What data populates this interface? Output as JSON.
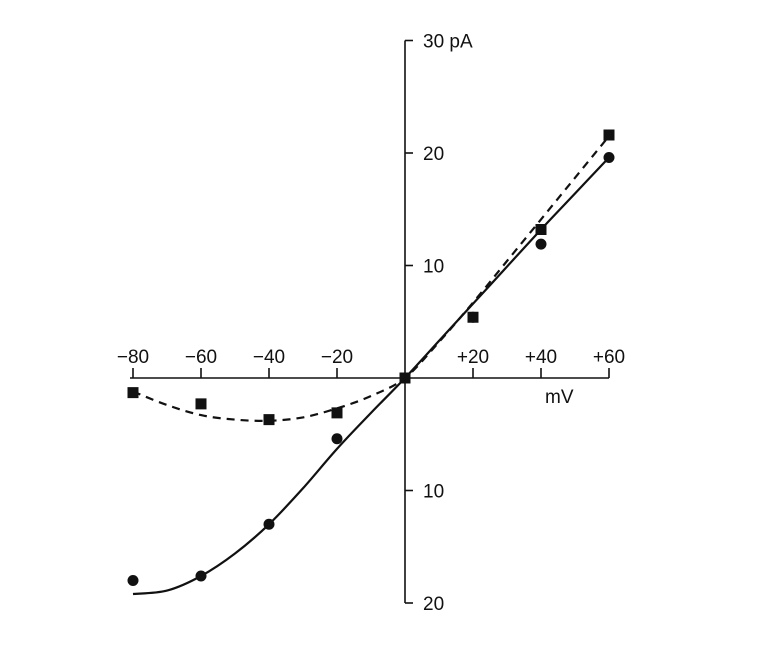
{
  "chart_data": {
    "type": "scatter",
    "title": "",
    "xlabel": "mV",
    "ylabel": "30 pA",
    "xlim": [
      -80,
      60
    ],
    "ylim": [
      -20,
      30
    ],
    "x_ticks": [
      {
        "value": -80,
        "label": "−80"
      },
      {
        "value": -60,
        "label": "−60"
      },
      {
        "value": -40,
        "label": "−40"
      },
      {
        "value": -20,
        "label": "−20"
      },
      {
        "value": 20,
        "label": "+20"
      },
      {
        "value": 40,
        "label": "+40"
      },
      {
        "value": 60,
        "label": "+60"
      }
    ],
    "y_ticks": [
      {
        "value": 20,
        "label": "20"
      },
      {
        "value": 10,
        "label": "10"
      },
      {
        "value": -10,
        "label": "10"
      },
      {
        "value": -20,
        "label": "20"
      }
    ],
    "grid": false,
    "series": [
      {
        "marker": "square",
        "line_style": "dashed",
        "points": [
          {
            "x": -80,
            "y": -1.3
          },
          {
            "x": -60,
            "y": -2.3
          },
          {
            "x": -40,
            "y": -3.7
          },
          {
            "x": -20,
            "y": -3.1
          },
          {
            "x": 0,
            "y": 0
          },
          {
            "x": 20,
            "y": 5.4
          },
          {
            "x": 40,
            "y": 13.2
          },
          {
            "x": 60,
            "y": 21.6
          }
        ],
        "fit": [
          [
            -80,
            -1.2
          ],
          [
            -70,
            -2.4
          ],
          [
            -60,
            -3.3
          ],
          [
            -50,
            -3.7
          ],
          [
            -40,
            -3.8
          ],
          [
            -30,
            -3.5
          ],
          [
            -20,
            -2.7
          ],
          [
            -10,
            -1.6
          ],
          [
            0,
            0
          ],
          [
            10,
            3.2
          ],
          [
            20,
            6.7
          ],
          [
            30,
            10.4
          ],
          [
            40,
            14.1
          ],
          [
            50,
            17.8
          ],
          [
            60,
            21.5
          ]
        ]
      },
      {
        "marker": "circle",
        "line_style": "solid",
        "points": [
          {
            "x": -80,
            "y": -18.0
          },
          {
            "x": -60,
            "y": -17.6
          },
          {
            "x": -40,
            "y": -13.0
          },
          {
            "x": -20,
            "y": -5.4
          },
          {
            "x": 0,
            "y": 0
          },
          {
            "x": 20,
            "y": 5.4
          },
          {
            "x": 40,
            "y": 11.9
          },
          {
            "x": 60,
            "y": 19.6
          }
        ],
        "fit": [
          [
            -80,
            -19.2
          ],
          [
            -70,
            -18.9
          ],
          [
            -60,
            -17.6
          ],
          [
            -50,
            -15.6
          ],
          [
            -40,
            -13.0
          ],
          [
            -30,
            -9.8
          ],
          [
            -20,
            -6.3
          ],
          [
            -10,
            -3.1
          ],
          [
            0,
            0
          ],
          [
            10,
            3.3
          ],
          [
            20,
            6.6
          ],
          [
            30,
            9.9
          ],
          [
            40,
            13.2
          ],
          [
            50,
            16.4
          ],
          [
            60,
            19.6
          ]
        ]
      }
    ]
  }
}
